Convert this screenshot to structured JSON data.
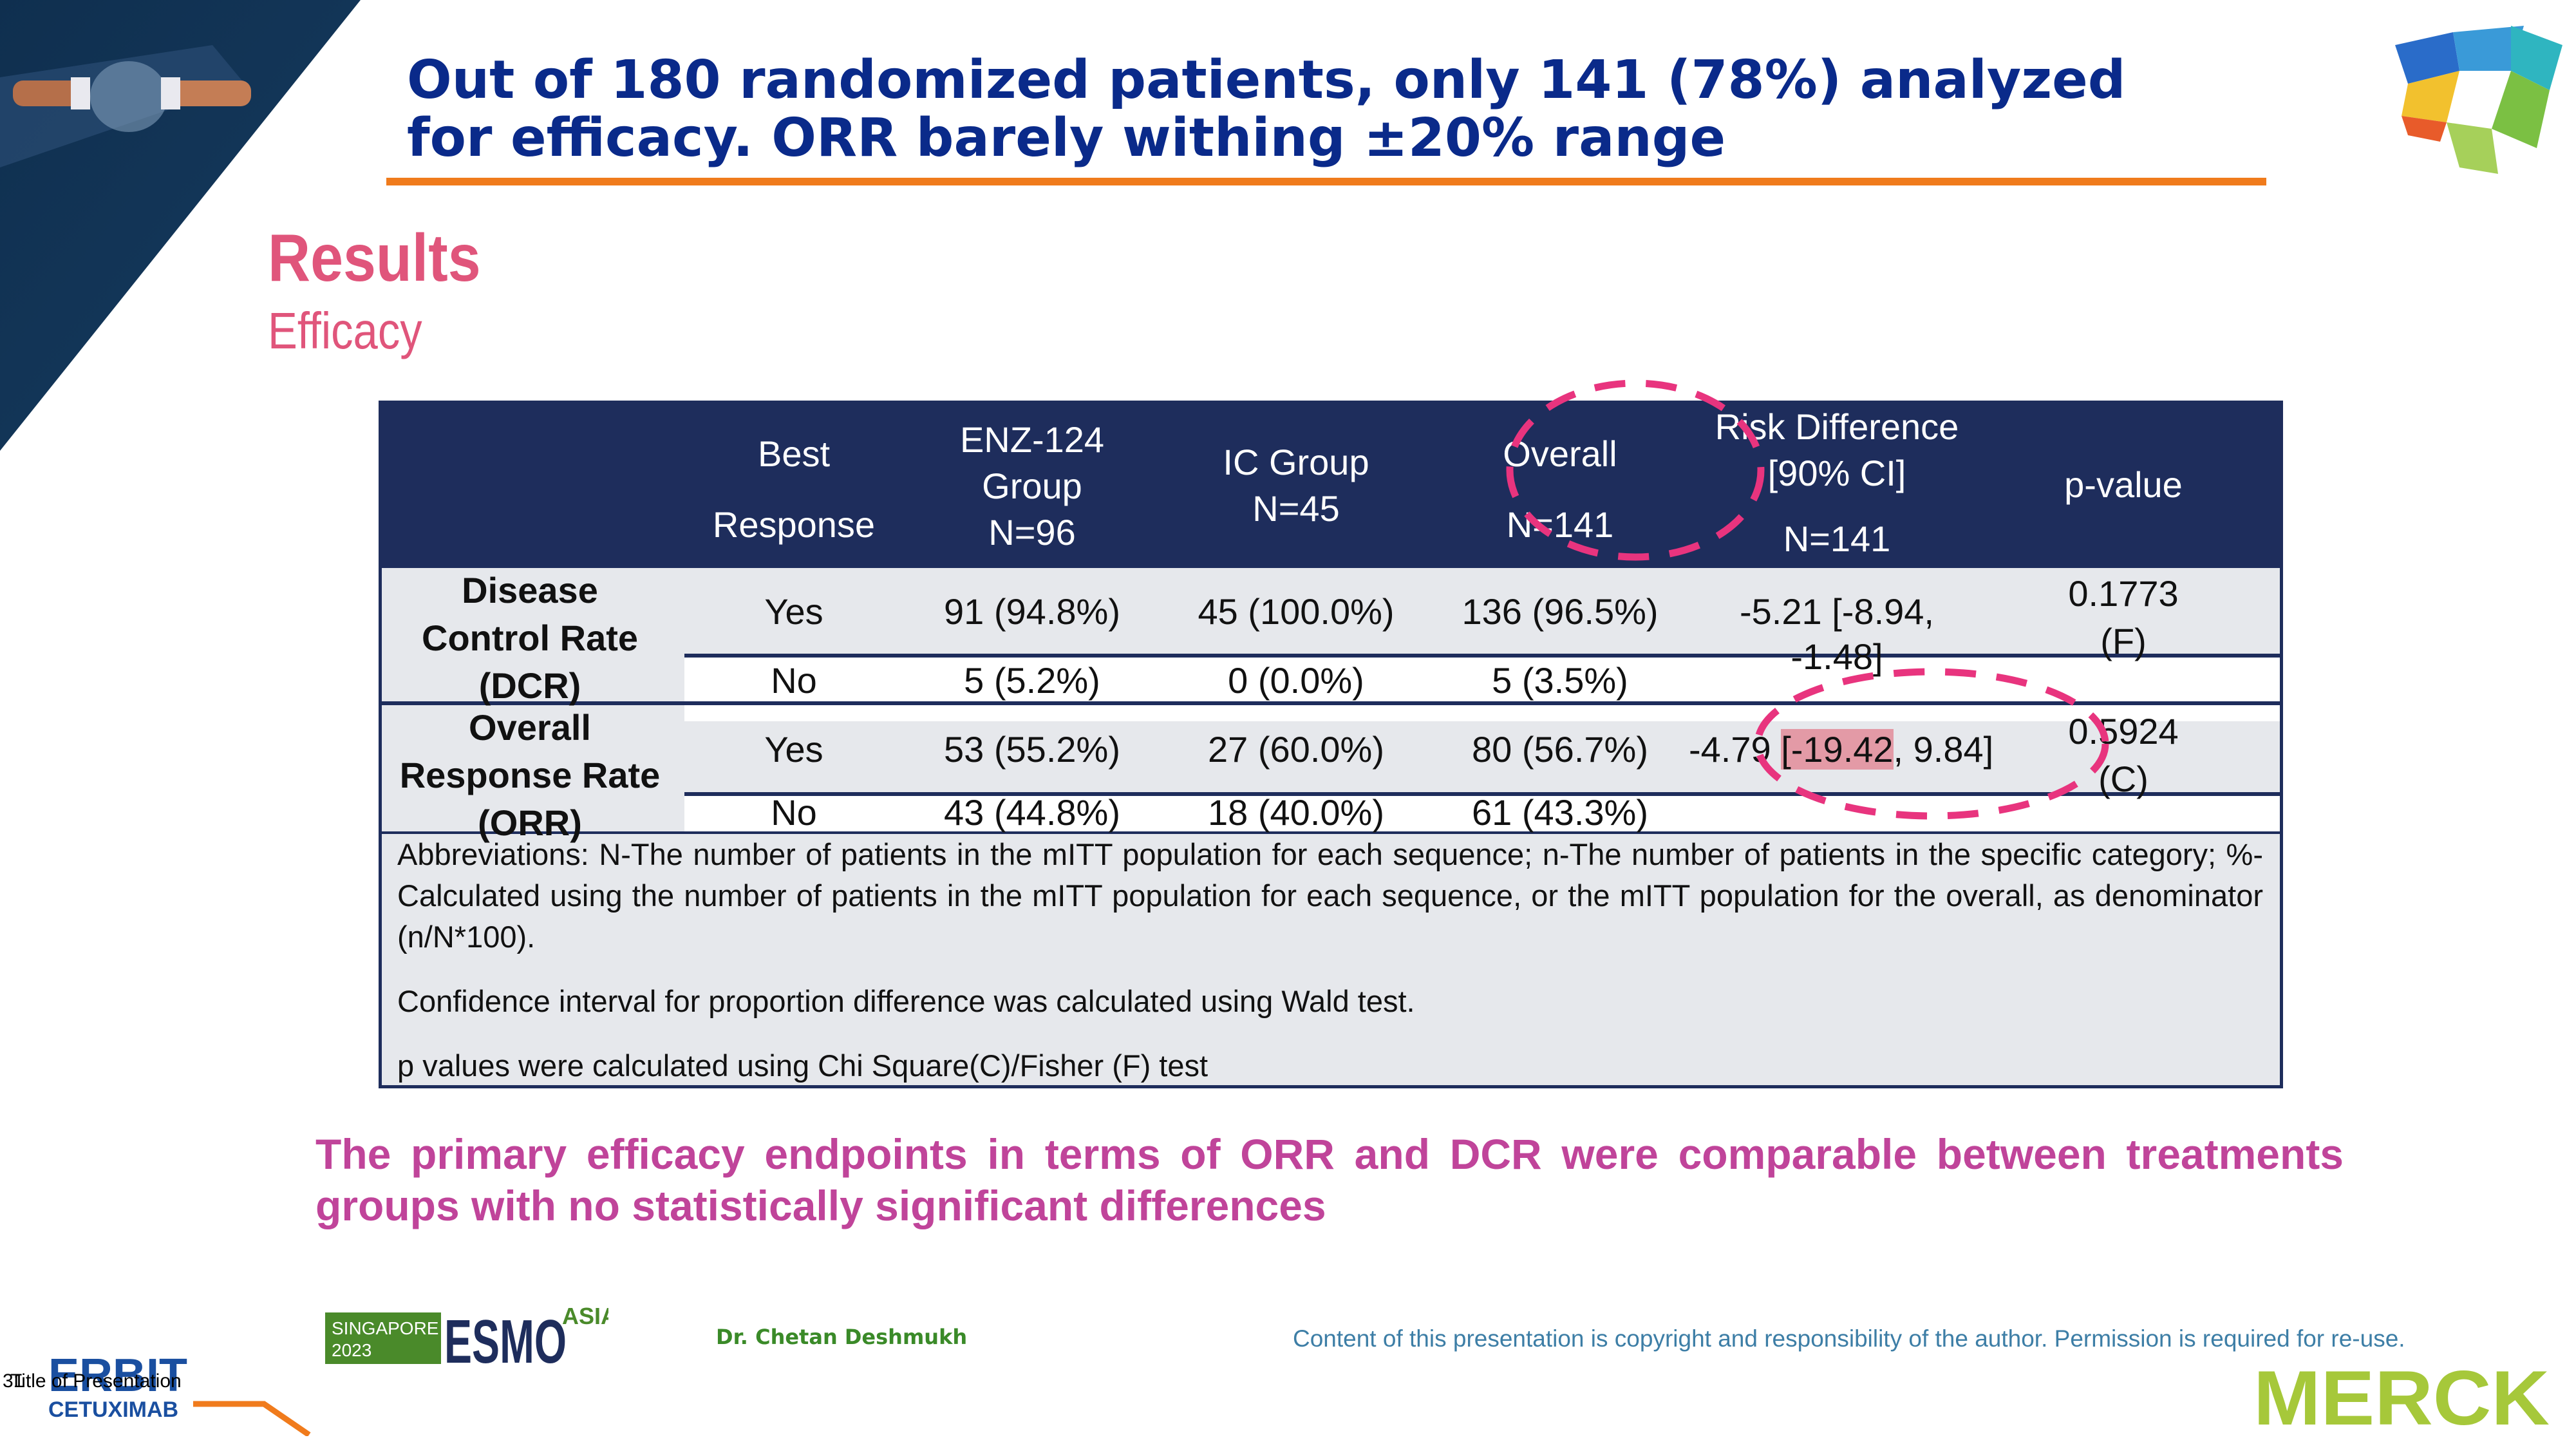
{
  "header": {
    "title_line1": "Out of 180 randomized patients, only 141 (78%) analyzed",
    "title_line2": "for efficacy. ORR barely withing ±20% range"
  },
  "section": {
    "title": "Results",
    "subtitle": "Efficacy"
  },
  "table": {
    "headers": {
      "best_response": [
        "Best",
        "Response"
      ],
      "enz": [
        "ENZ-124",
        "Group",
        "N=96"
      ],
      "ic": [
        "IC Group",
        "N=45"
      ],
      "overall": [
        "Overall",
        "N=141"
      ],
      "risk": [
        "Risk Difference",
        "[90%  CI]",
        "N=141"
      ],
      "pvalue": "p-value"
    },
    "dcr": {
      "label": [
        "Disease",
        "Control Rate",
        "(DCR)"
      ],
      "yes": {
        "response": "Yes",
        "enz": "91 (94.8%)",
        "ic": "45 (100.0%)",
        "overall": "136 (96.5%)",
        "risk": "-5.21 [-8.94, -1.48]"
      },
      "no": {
        "response": "No",
        "enz": "5 (5.2%)",
        "ic": "0 (0.0%)",
        "overall": "5 (3.5%)"
      },
      "pvalue": [
        "0.1773",
        "(F)"
      ]
    },
    "orr": {
      "label": [
        "Overall",
        "Response Rate",
        "(ORR)"
      ],
      "yes": {
        "response": "Yes",
        "enz": "53 (55.2%)",
        "ic": "27 (60.0%)",
        "overall": "80 (56.7%)",
        "risk_a": "-4.79 ",
        "risk_b": "[-19.42",
        "risk_c": ", 9.84]"
      },
      "no": {
        "response": "No",
        "enz": "43 (44.8%)",
        "ic": "18 (40.0%)",
        "overall": "61 (43.3%)"
      },
      "pvalue": [
        "0.5924",
        "(C)"
      ]
    },
    "notes": [
      "Abbreviations: N-The number of patients in the mITT population for each sequence; n-The number of patients in the specific category; %-Calculated using the number of patients in the mITT population for each sequence, or the mITT population for the overall, as denominator (n/N*100).",
      "Confidence interval for proportion difference was calculated using Wald test.",
      "p values were calculated using Chi Square(C)/Fisher (F) test"
    ]
  },
  "conclusion": "The primary efficacy endpoints in terms of ORR and DCR were comparable between treatments groups with no statistically significant differences",
  "footer": {
    "esmo_city": "SINGAPORE",
    "esmo_year": "2023",
    "esmo_name": "ESMO",
    "esmo_region": "ASIA",
    "speaker": "Dr. Chetan Deshmukh",
    "copyright": "Content of this presentation is copyright and responsibility of the author. Permission is required for re-use.",
    "slide_number": "31",
    "presentation_title": "Title of Presentation",
    "brand_top": "ERBIT",
    "brand_bottom": "CETUXIMAB",
    "merck": "MERCK"
  },
  "colors": {
    "title": "#0a2a8a",
    "accent_orange": "#f07b1c",
    "header_navy": "#1e2d5c",
    "results_pink": "#e0557b",
    "conclusion_magenta": "#c0449a",
    "highlight_dash": "#e8347e"
  }
}
